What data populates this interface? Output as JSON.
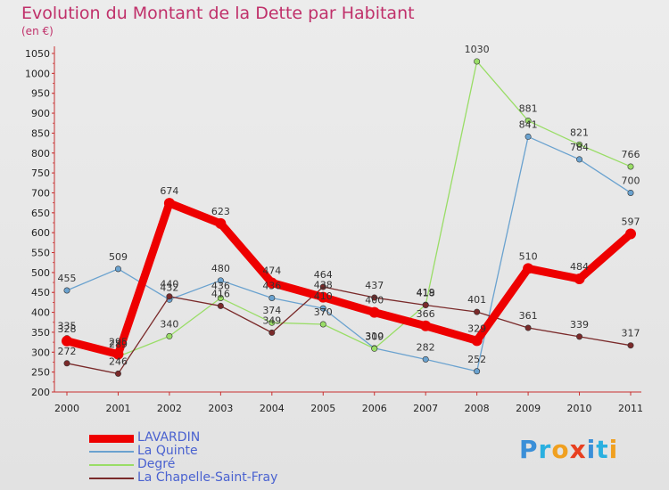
{
  "title": "Evolution du Montant de la Dette par Habitant",
  "subtitle": "(en €)",
  "logo": "Proxiti",
  "chart_data": {
    "type": "line",
    "x": [
      "2000",
      "2001",
      "2002",
      "2003",
      "2004",
      "2005",
      "2006",
      "2007",
      "2008",
      "2009",
      "2010",
      "2011"
    ],
    "ylim": [
      200,
      1050
    ],
    "yticks": [
      200,
      250,
      300,
      350,
      400,
      450,
      500,
      550,
      600,
      650,
      700,
      750,
      800,
      850,
      900,
      950,
      1000,
      1050
    ],
    "grid": false,
    "legend_position": "bottom-left",
    "series": [
      {
        "name": "LAVARDIN",
        "color": "#ee0000",
        "width": 9,
        "labels": true,
        "values": [
          328,
          295,
          674,
          623,
          474,
          438,
          400,
          366,
          329,
          510,
          484,
          597
        ]
      },
      {
        "name": "La Quinte",
        "color": "#6aa2cf",
        "width": 1.3,
        "labels": true,
        "values": [
          455,
          509,
          432,
          480,
          436,
          410,
          310,
          282,
          252,
          841,
          784,
          700
        ]
      },
      {
        "name": "Degré",
        "color": "#99dd66",
        "width": 1.3,
        "labels": true,
        "values": [
          335,
          289,
          340,
          436,
          374,
          370,
          309,
          419,
          1030,
          881,
          821,
          766
        ]
      },
      {
        "name": "La Chapelle-Saint-Fray",
        "color": "#7a2a2a",
        "width": 1.3,
        "labels": true,
        "values": [
          272,
          246,
          440,
          416,
          349,
          464,
          437,
          418,
          401,
          361,
          339,
          317
        ]
      }
    ]
  }
}
